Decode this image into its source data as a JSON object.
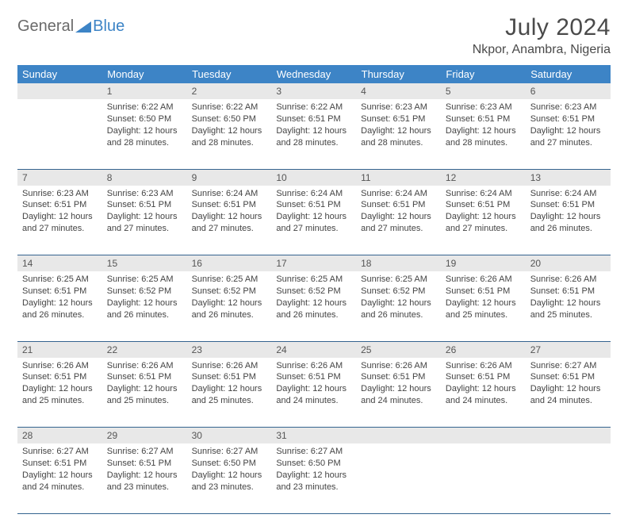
{
  "logo": {
    "text1": "General",
    "text2": "Blue"
  },
  "title": "July 2024",
  "location": "Nkpor, Anambra, Nigeria",
  "colors": {
    "header_bg": "#3d84c6",
    "header_text": "#ffffff",
    "daynum_bg": "#e8e8e8",
    "border": "#35648f",
    "logo_gray": "#6a6a6a",
    "logo_blue": "#3d84c6"
  },
  "weekdays": [
    "Sunday",
    "Monday",
    "Tuesday",
    "Wednesday",
    "Thursday",
    "Friday",
    "Saturday"
  ],
  "weeks": [
    [
      null,
      {
        "n": "1",
        "sr": "6:22 AM",
        "ss": "6:50 PM",
        "dl": "12 hours and 28 minutes."
      },
      {
        "n": "2",
        "sr": "6:22 AM",
        "ss": "6:50 PM",
        "dl": "12 hours and 28 minutes."
      },
      {
        "n": "3",
        "sr": "6:22 AM",
        "ss": "6:51 PM",
        "dl": "12 hours and 28 minutes."
      },
      {
        "n": "4",
        "sr": "6:23 AM",
        "ss": "6:51 PM",
        "dl": "12 hours and 28 minutes."
      },
      {
        "n": "5",
        "sr": "6:23 AM",
        "ss": "6:51 PM",
        "dl": "12 hours and 28 minutes."
      },
      {
        "n": "6",
        "sr": "6:23 AM",
        "ss": "6:51 PM",
        "dl": "12 hours and 27 minutes."
      }
    ],
    [
      {
        "n": "7",
        "sr": "6:23 AM",
        "ss": "6:51 PM",
        "dl": "12 hours and 27 minutes."
      },
      {
        "n": "8",
        "sr": "6:23 AM",
        "ss": "6:51 PM",
        "dl": "12 hours and 27 minutes."
      },
      {
        "n": "9",
        "sr": "6:24 AM",
        "ss": "6:51 PM",
        "dl": "12 hours and 27 minutes."
      },
      {
        "n": "10",
        "sr": "6:24 AM",
        "ss": "6:51 PM",
        "dl": "12 hours and 27 minutes."
      },
      {
        "n": "11",
        "sr": "6:24 AM",
        "ss": "6:51 PM",
        "dl": "12 hours and 27 minutes."
      },
      {
        "n": "12",
        "sr": "6:24 AM",
        "ss": "6:51 PM",
        "dl": "12 hours and 27 minutes."
      },
      {
        "n": "13",
        "sr": "6:24 AM",
        "ss": "6:51 PM",
        "dl": "12 hours and 26 minutes."
      }
    ],
    [
      {
        "n": "14",
        "sr": "6:25 AM",
        "ss": "6:51 PM",
        "dl": "12 hours and 26 minutes."
      },
      {
        "n": "15",
        "sr": "6:25 AM",
        "ss": "6:52 PM",
        "dl": "12 hours and 26 minutes."
      },
      {
        "n": "16",
        "sr": "6:25 AM",
        "ss": "6:52 PM",
        "dl": "12 hours and 26 minutes."
      },
      {
        "n": "17",
        "sr": "6:25 AM",
        "ss": "6:52 PM",
        "dl": "12 hours and 26 minutes."
      },
      {
        "n": "18",
        "sr": "6:25 AM",
        "ss": "6:52 PM",
        "dl": "12 hours and 26 minutes."
      },
      {
        "n": "19",
        "sr": "6:26 AM",
        "ss": "6:51 PM",
        "dl": "12 hours and 25 minutes."
      },
      {
        "n": "20",
        "sr": "6:26 AM",
        "ss": "6:51 PM",
        "dl": "12 hours and 25 minutes."
      }
    ],
    [
      {
        "n": "21",
        "sr": "6:26 AM",
        "ss": "6:51 PM",
        "dl": "12 hours and 25 minutes."
      },
      {
        "n": "22",
        "sr": "6:26 AM",
        "ss": "6:51 PM",
        "dl": "12 hours and 25 minutes."
      },
      {
        "n": "23",
        "sr": "6:26 AM",
        "ss": "6:51 PM",
        "dl": "12 hours and 25 minutes."
      },
      {
        "n": "24",
        "sr": "6:26 AM",
        "ss": "6:51 PM",
        "dl": "12 hours and 24 minutes."
      },
      {
        "n": "25",
        "sr": "6:26 AM",
        "ss": "6:51 PM",
        "dl": "12 hours and 24 minutes."
      },
      {
        "n": "26",
        "sr": "6:26 AM",
        "ss": "6:51 PM",
        "dl": "12 hours and 24 minutes."
      },
      {
        "n": "27",
        "sr": "6:27 AM",
        "ss": "6:51 PM",
        "dl": "12 hours and 24 minutes."
      }
    ],
    [
      {
        "n": "28",
        "sr": "6:27 AM",
        "ss": "6:51 PM",
        "dl": "12 hours and 24 minutes."
      },
      {
        "n": "29",
        "sr": "6:27 AM",
        "ss": "6:51 PM",
        "dl": "12 hours and 23 minutes."
      },
      {
        "n": "30",
        "sr": "6:27 AM",
        "ss": "6:50 PM",
        "dl": "12 hours and 23 minutes."
      },
      {
        "n": "31",
        "sr": "6:27 AM",
        "ss": "6:50 PM",
        "dl": "12 hours and 23 minutes."
      },
      null,
      null,
      null
    ]
  ],
  "labels": {
    "sunrise": "Sunrise:",
    "sunset": "Sunset:",
    "daylight": "Daylight:"
  }
}
